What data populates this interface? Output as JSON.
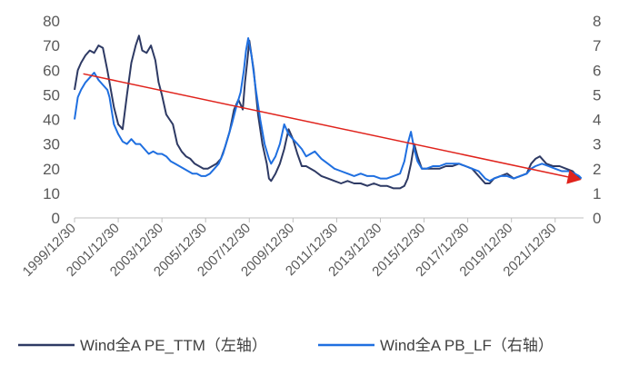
{
  "chart_data": {
    "type": "line",
    "title": "",
    "xlabel": "",
    "ylabel_left": "",
    "ylabel_right": "",
    "x_tick_labels": [
      "1999/12/30",
      "2001/12/30",
      "2003/12/30",
      "2005/12/30",
      "2007/12/30",
      "2009/12/30",
      "2011/12/30",
      "2013/12/30",
      "2015/12/30",
      "2017/12/30",
      "2019/12/30",
      "2021/12/30"
    ],
    "x_range": [
      2000.0,
      2023.3
    ],
    "y_left": {
      "min": 0,
      "max": 80,
      "ticks": [
        0,
        10,
        20,
        30,
        40,
        50,
        60,
        70,
        80
      ]
    },
    "y_right": {
      "min": 0,
      "max": 8,
      "ticks": [
        0,
        1,
        2,
        3,
        4,
        5,
        6,
        7,
        8
      ]
    },
    "grid": false,
    "legend_position": "bottom",
    "series": [
      {
        "name": "Wind全A PE_TTM（左轴）",
        "axis": "left",
        "color": "#2e3a64",
        "x": [
          2000.0,
          2000.15,
          2000.3,
          2000.5,
          2000.7,
          2000.9,
          2001.1,
          2001.3,
          2001.5,
          2001.6,
          2001.8,
          2002.0,
          2002.2,
          2002.4,
          2002.6,
          2002.8,
          2002.95,
          2003.1,
          2003.3,
          2003.5,
          2003.7,
          2003.85,
          2004.0,
          2004.2,
          2004.35,
          2004.5,
          2004.7,
          2004.9,
          2005.1,
          2005.3,
          2005.5,
          2005.7,
          2005.9,
          2006.1,
          2006.3,
          2006.5,
          2006.7,
          2006.9,
          2007.1,
          2007.3,
          2007.5,
          2007.7,
          2007.8,
          2007.9,
          2008.0,
          2008.2,
          2008.4,
          2008.6,
          2008.8,
          2008.9,
          2009.0,
          2009.2,
          2009.4,
          2009.6,
          2009.8,
          2010.0,
          2010.2,
          2010.4,
          2010.6,
          2010.8,
          2011.0,
          2011.3,
          2011.6,
          2011.9,
          2012.2,
          2012.5,
          2012.8,
          2013.1,
          2013.4,
          2013.7,
          2014.0,
          2014.3,
          2014.6,
          2014.9,
          2015.1,
          2015.25,
          2015.4,
          2015.55,
          2015.7,
          2015.9,
          2016.1,
          2016.4,
          2016.7,
          2017.0,
          2017.3,
          2017.6,
          2017.9,
          2018.2,
          2018.5,
          2018.8,
          2019.0,
          2019.2,
          2019.5,
          2019.8,
          2020.1,
          2020.4,
          2020.7,
          2020.9,
          2021.1,
          2021.3,
          2021.6,
          2021.9,
          2022.2,
          2022.5,
          2022.8,
          2023.0,
          2023.2
        ],
        "values": [
          52,
          60,
          63,
          66,
          68,
          67,
          70,
          69,
          60,
          55,
          45,
          38,
          36,
          50,
          63,
          70,
          74,
          68,
          67,
          70,
          64,
          55,
          50,
          42,
          40,
          38,
          30,
          27,
          25,
          24,
          22,
          21,
          20,
          20,
          21,
          22,
          24,
          29,
          35,
          44,
          48,
          44,
          55,
          63,
          72,
          60,
          42,
          30,
          22,
          16,
          15,
          18,
          22,
          28,
          36,
          32,
          26,
          21,
          21,
          20,
          19,
          17,
          16,
          15,
          14,
          15,
          14,
          14,
          13,
          14,
          13,
          13,
          12,
          12,
          13,
          16,
          22,
          30,
          25,
          20,
          20,
          20,
          20,
          21,
          21,
          22,
          21,
          20,
          17,
          14,
          14,
          16,
          17,
          18,
          16,
          17,
          18,
          22,
          24,
          25,
          22,
          21,
          21,
          20,
          19,
          17,
          16
        ]
      },
      {
        "name": "Wind全A PB_LF（右轴）",
        "axis": "right",
        "color": "#1f6fe0",
        "x": [
          2000.0,
          2000.15,
          2000.3,
          2000.5,
          2000.7,
          2000.9,
          2001.1,
          2001.3,
          2001.5,
          2001.6,
          2001.8,
          2002.0,
          2002.2,
          2002.4,
          2002.6,
          2002.8,
          2003.0,
          2003.2,
          2003.4,
          2003.6,
          2003.8,
          2004.0,
          2004.2,
          2004.4,
          2004.6,
          2004.8,
          2005.0,
          2005.2,
          2005.4,
          2005.6,
          2005.8,
          2006.0,
          2006.2,
          2006.4,
          2006.6,
          2006.8,
          2007.0,
          2007.2,
          2007.4,
          2007.6,
          2007.75,
          2007.85,
          2007.95,
          2008.1,
          2008.3,
          2008.5,
          2008.7,
          2008.9,
          2009.0,
          2009.2,
          2009.4,
          2009.6,
          2009.8,
          2010.0,
          2010.2,
          2010.4,
          2010.6,
          2010.8,
          2011.0,
          2011.3,
          2011.6,
          2011.9,
          2012.2,
          2012.5,
          2012.8,
          2013.1,
          2013.4,
          2013.7,
          2014.0,
          2014.3,
          2014.6,
          2014.9,
          2015.1,
          2015.25,
          2015.4,
          2015.55,
          2015.7,
          2015.9,
          2016.1,
          2016.4,
          2016.7,
          2017.0,
          2017.3,
          2017.6,
          2017.9,
          2018.2,
          2018.5,
          2018.8,
          2019.0,
          2019.2,
          2019.5,
          2019.8,
          2020.1,
          2020.4,
          2020.7,
          2020.9,
          2021.1,
          2021.4,
          2021.7,
          2022.0,
          2022.3,
          2022.6,
          2022.9,
          2023.1,
          2023.2
        ],
        "values": [
          4.0,
          4.9,
          5.2,
          5.5,
          5.7,
          5.9,
          5.6,
          5.4,
          5.2,
          4.9,
          3.8,
          3.4,
          3.1,
          3.0,
          3.2,
          3.0,
          3.0,
          2.8,
          2.6,
          2.7,
          2.6,
          2.6,
          2.5,
          2.3,
          2.2,
          2.1,
          2.0,
          1.9,
          1.8,
          1.8,
          1.7,
          1.7,
          1.8,
          2.0,
          2.2,
          2.6,
          3.2,
          3.8,
          4.5,
          5.1,
          6.0,
          6.8,
          7.3,
          6.6,
          5.2,
          4.0,
          3.0,
          2.4,
          2.2,
          2.5,
          3.0,
          3.8,
          3.4,
          3.2,
          3.0,
          2.8,
          2.5,
          2.6,
          2.7,
          2.4,
          2.2,
          2.0,
          1.9,
          1.8,
          1.7,
          1.8,
          1.7,
          1.7,
          1.6,
          1.6,
          1.7,
          1.8,
          2.3,
          3.0,
          3.5,
          2.8,
          2.3,
          2.0,
          2.0,
          2.1,
          2.1,
          2.2,
          2.2,
          2.2,
          2.1,
          2.0,
          1.9,
          1.6,
          1.5,
          1.6,
          1.7,
          1.7,
          1.6,
          1.7,
          1.8,
          2.0,
          2.1,
          2.2,
          2.1,
          2.0,
          1.9,
          1.9,
          1.8,
          1.7,
          1.6
        ]
      }
    ],
    "annotations": [
      {
        "type": "trend-arrow",
        "color": "#e0231c",
        "from": {
          "x": 2000.4,
          "y_left": 58.5
        },
        "to": {
          "x": 2023.2,
          "y_left": 15.5
        }
      }
    ]
  }
}
